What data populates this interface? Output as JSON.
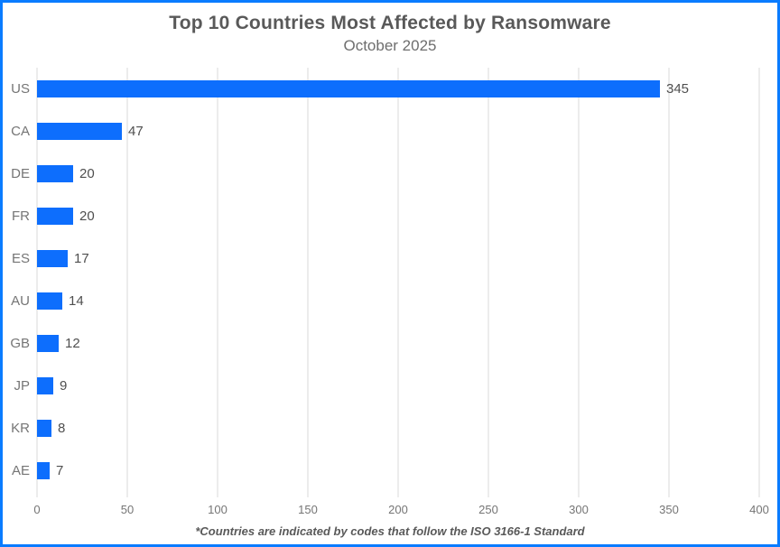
{
  "chart": {
    "title": "Top 10 Countries Most Affected by Ransomware",
    "subtitle": "October 2025",
    "footnote": "*Countries are indicated by codes that follow the ISO 3166-1 Standard"
  },
  "chart_data": {
    "type": "bar",
    "orientation": "horizontal",
    "title": "Top 10 Countries Most Affected by Ransomware",
    "subtitle": "October 2025",
    "categories": [
      "US",
      "CA",
      "DE",
      "FR",
      "ES",
      "AU",
      "GB",
      "JP",
      "KR",
      "AE"
    ],
    "values": [
      345,
      47,
      20,
      20,
      17,
      14,
      12,
      9,
      8,
      7
    ],
    "xlabel": "",
    "ylabel": "",
    "xlim": [
      0,
      400
    ],
    "xticks": [
      0,
      50,
      100,
      150,
      200,
      250,
      300,
      350,
      400
    ],
    "grid": true,
    "legend": false,
    "value_labels_shown": true,
    "annotations": [
      "*Countries are indicated by codes that follow the ISO 3166-1 Standard"
    ],
    "colors": {
      "bar": "#0d6efd",
      "frame_border": "#0a7cff",
      "gridline": "#d9d9d9",
      "title_text": "#595959",
      "subtitle_text": "#6e6e6e",
      "category_text": "#757575",
      "value_text": "#4f4f4f",
      "tick_text": "#757575",
      "footnote_text": "#595959"
    }
  }
}
